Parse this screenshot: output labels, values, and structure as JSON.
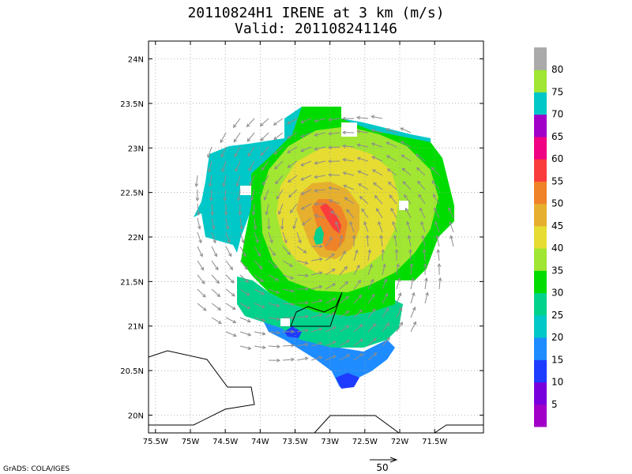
{
  "title": {
    "line1": "20110824H1 IRENE at 3 km (m/s)",
    "line2": "Valid: 201108241146"
  },
  "map": {
    "lon_range": [
      -75.6,
      -70.8
    ],
    "lat_range": [
      19.8,
      24.2
    ],
    "x_ticks": [
      {
        "value": -75.5,
        "label": "75.5W"
      },
      {
        "value": -75.0,
        "label": "75W"
      },
      {
        "value": -74.5,
        "label": "74.5W"
      },
      {
        "value": -74.0,
        "label": "74W"
      },
      {
        "value": -73.5,
        "label": "73.5W"
      },
      {
        "value": -73.0,
        "label": "73W"
      },
      {
        "value": -72.5,
        "label": "72.5W"
      },
      {
        "value": -72.0,
        "label": "72W"
      },
      {
        "value": -71.5,
        "label": "71.5W"
      }
    ],
    "y_ticks": [
      {
        "value": 20.0,
        "label": "20N"
      },
      {
        "value": 20.5,
        "label": "20.5N"
      },
      {
        "value": 21.0,
        "label": "21N"
      },
      {
        "value": 21.5,
        "label": "21.5N"
      },
      {
        "value": 22.0,
        "label": "22N"
      },
      {
        "value": 22.5,
        "label": "22.5N"
      },
      {
        "value": 23.0,
        "label": "23N"
      },
      {
        "value": 23.5,
        "label": "23.5N"
      },
      {
        "value": 24.0,
        "label": "24N"
      }
    ],
    "grid": "dotted",
    "storm_center": {
      "lon": -73.2,
      "lat": 22.05
    }
  },
  "colorbar": {
    "labels": [
      "5",
      "10",
      "15",
      "20",
      "25",
      "30",
      "35",
      "40",
      "45",
      "50",
      "55",
      "60",
      "65",
      "70",
      "75",
      "80"
    ],
    "colors": [
      "#a000c8",
      "#7800dc",
      "#1e3cff",
      "#1e8cff",
      "#00c8c8",
      "#00d28c",
      "#00dc00",
      "#a0e632",
      "#e6dc32",
      "#e6af2d",
      "#f08228",
      "#fa3c3c",
      "#f00082",
      "#a000c8",
      "#00c8c8",
      "#a0e632",
      "#aaaaaa"
    ]
  },
  "vector_key": {
    "label": "50"
  },
  "credit": "GrADS: COLA/IGES"
}
